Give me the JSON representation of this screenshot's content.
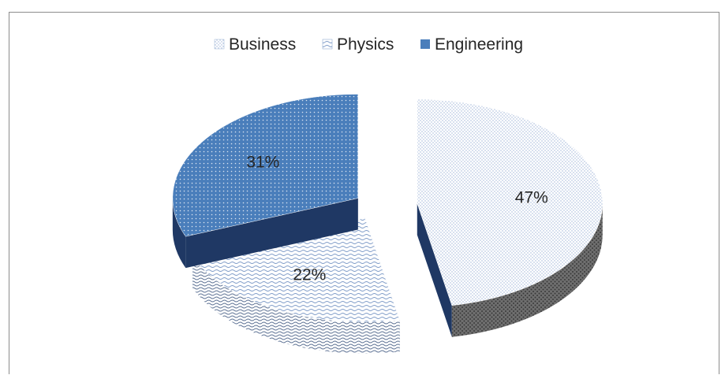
{
  "chart_data": {
    "type": "pie",
    "style": "3d-exploded",
    "legend_position": "top",
    "categories": [
      "Business",
      "Physics",
      "Engineering"
    ],
    "values": [
      47,
      22,
      31
    ],
    "value_labels": [
      "47%",
      "22%",
      "31%"
    ],
    "series": [
      {
        "name": "Business",
        "value": 47,
        "color": "#dbe5f1",
        "side_color": "#7f7f7f",
        "pattern": "dotted"
      },
      {
        "name": "Physics",
        "value": 22,
        "color": "#c6d5ea",
        "side_color": "#8ea6c8",
        "pattern": "wave"
      },
      {
        "name": "Engineering",
        "value": 31,
        "color": "#4a7ebb",
        "side_color": "#1f3864",
        "pattern": "dotted"
      }
    ]
  }
}
